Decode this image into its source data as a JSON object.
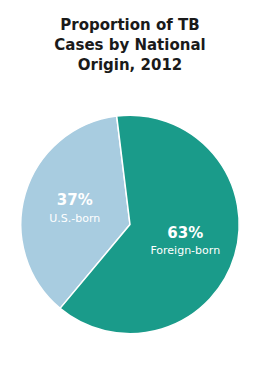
{
  "chart_data": {
    "type": "pie",
    "title": "Proportion of TB\nCases by National\nOrigin, 2012",
    "categories": [
      "U.S.-born",
      "Foreign-born"
    ],
    "values": [
      37,
      63
    ],
    "value_labels": [
      "37%",
      "63%"
    ],
    "data_labels": true,
    "colors": [
      "#a8cce0",
      "#1a9b8a"
    ]
  }
}
